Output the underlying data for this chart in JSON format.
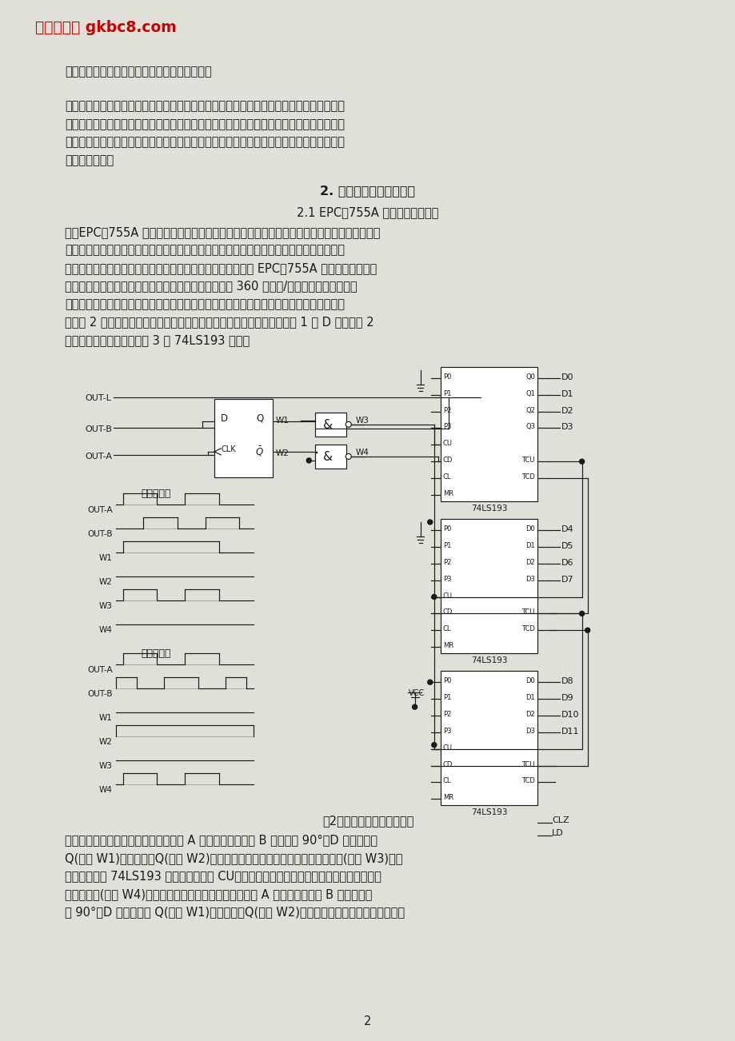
{
  "bg_color": "#e0e0d8",
  "page_bg": "#ffffff",
  "title_text": "工控编程吧 gkbc8.com",
  "title_color": "#cc0000",
  "text_color": "#1a1a1a",
  "page_num": "2",
  "para1": "能；另一组则完全同增量式编码器的输出信息。",
  "para2_lines": [
    "　　光电编码器是一种角度（角速度）检测装置，它将输入给轴的角度量，利用光电转换原",
    "理转换成相应的电脉冲或数字量，具有体积小、精度高、工作可靠、接口数字化等优点。它",
    "广泛应用于数控机床、回转台、伺服传动、机器人、雷达、军事目标测定等需要检测角度的",
    "装置和设备中。"
  ],
  "section_title": "2. 光电编码器的应用电路",
  "subsection": "2.1 EPC－755A 光电编码器的应用",
  "body_lines": [
    "　　EPC－755A 光电编码器具备良好的使用性能，在角度测量、位移测量时抗干扰能力很强，",
    "并具有稳定可靠的输出脉冲信号，且该脉冲信号经计数后可得到被测量的数字信号。因此，",
    "我们在研制汽车驾驶模拟器时，对方向盘旋转角度的测量选用 EPC－755A 光电编码器作为传",
    "感器，其输出电路选用集电极开路型，输出分辨率选用 360 个脉冲/圈，考虑到汽车方向盘",
    "转动是双向的，既可顺时针旋转，也可逆时针旋转，需要对编码器的输出信号鉴相后才能计",
    "数。图 2 给出了光电编码器实际使用的鉴相与双向计数电路，鉴相电路用 1 个 D 触发器和 2",
    "个与非门组成，计数电路用 3 片 74LS193 组成。"
  ],
  "fig_caption": "图2光电编码器鉴相计数电路",
  "bottom_lines": [
    "　　当光电编码器顺时针旋转时，通道 A 输出波形超前通道 B 输出波形 90°，D 触发器输出",
    "Q(波形 W1)为高电平，Q(波形 W2)为低电平，上面与非门打开，计数脉冲通过(波形 W3)，送",
    "至双向计数器 74LS193 的加脉冲输入端 CU，进行加法计数；此时，下面与非门关闭，其输",
    "出为高电平(波形 W4)。当光电编码器逆时针旋转时，通道 A 输出波形比通道 B 输出波形延",
    "迟 90°，D 触发器输出 Q(波形 W1)为低电平，Q(波形 W2)为高电平，上面与非门关闭，其输"
  ]
}
